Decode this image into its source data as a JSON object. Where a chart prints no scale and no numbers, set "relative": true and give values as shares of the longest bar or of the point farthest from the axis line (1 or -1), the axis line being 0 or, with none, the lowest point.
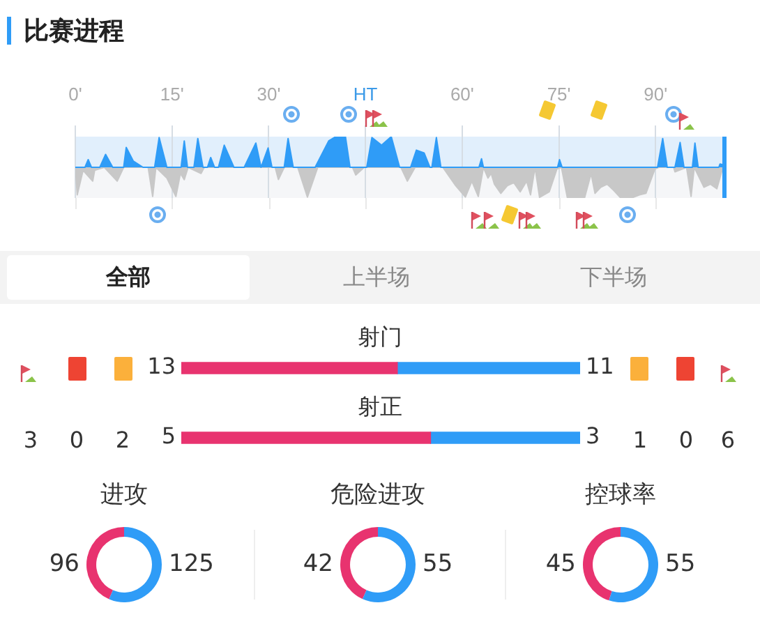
{
  "chart_data": [
    {
      "type": "area",
      "title": "比赛进程",
      "relative": true,
      "xlim": [
        0,
        101
      ],
      "xticks": [
        {
          "value": 0,
          "label": "0'"
        },
        {
          "value": 15,
          "label": "15'"
        },
        {
          "value": 30,
          "label": "30'"
        },
        {
          "value": 45,
          "label": "HT"
        },
        {
          "value": 60,
          "label": "60'"
        },
        {
          "value": 75,
          "label": "75'"
        },
        {
          "value": 90,
          "label": "90'"
        }
      ],
      "grid": "x",
      "tick_labels": "x",
      "ref_lines": [
        {
          "axis": "x",
          "value": 101,
          "color": "#2f9cf7"
        }
      ],
      "series": [
        {
          "color": "#2f9cf7",
          "x": [
            0,
            1.5,
            2,
            2.5,
            3.8,
            4.7,
            5.8,
            7.5,
            7.9,
            9,
            10.5,
            12.3,
            13,
            14.2,
            16.4,
            16.9,
            17.4,
            18.4,
            19,
            19.8,
            20.5,
            21,
            21.6,
            22.2,
            23.1,
            24.6,
            26.2,
            28,
            28.8,
            29.9,
            30.5,
            32.4,
            33,
            33.8,
            37.2,
            39.3,
            40.4,
            41.9,
            42.6,
            45.2,
            46,
            47.5,
            49,
            50.3,
            52,
            52.9,
            54.1,
            55,
            55.3,
            56,
            56.7,
            62.6,
            63,
            63.3,
            74.8,
            75.1,
            75.5,
            90.3,
            91.1,
            91.8,
            93,
            93.8,
            94.4,
            95.7,
            96.1,
            96.6,
            99.8,
            100,
            101
          ],
          "values": [
            0,
            0,
            0.25,
            0,
            0,
            0.42,
            0,
            0,
            0.65,
            0.2,
            0,
            0,
            0.97,
            0,
            0,
            0.86,
            0,
            0,
            0.94,
            0,
            0,
            0.32,
            0,
            0,
            0.72,
            0,
            0,
            0.79,
            0,
            0.63,
            0,
            0,
            0.94,
            0,
            0,
            0.86,
            1,
            1,
            0,
            0,
            0.97,
            0.72,
            1,
            0,
            0,
            0.56,
            0.47,
            0,
            0,
            0.97,
            0,
            0,
            0.28,
            0,
            0,
            0.25,
            0,
            0,
            0.94,
            0,
            0,
            0.81,
            0,
            0,
            0.79,
            0,
            0,
            0.11,
            0.05
          ]
        },
        {
          "color": "#c8c8c8",
          "x": [
            0,
            0.3,
            1.2,
            2.7,
            3,
            4.5,
            6.5,
            7.5,
            11.3,
            12,
            12.5,
            14.2,
            15.6,
            16.3,
            16.9,
            17.5,
            19.5,
            20,
            31,
            31.5,
            32.4,
            34.5,
            36,
            37.6,
            43,
            43.5,
            44.8,
            50.5,
            51.5,
            52.7,
            57,
            59,
            60.5,
            61.5,
            62.5,
            63.3,
            64,
            64.5,
            65,
            66,
            67,
            68,
            69,
            70,
            70.6,
            71.3,
            72,
            73.5,
            74.7,
            75.4,
            76.3,
            79,
            80,
            80.6,
            81.5,
            82.5,
            83.5,
            84.5,
            86.5,
            87.5,
            88.5,
            89.9,
            90.5,
            92.8,
            93,
            94.8,
            95.5,
            96,
            97.5,
            98.5,
            99.5,
            100.3,
            101
          ],
          "values": [
            0,
            -0.9,
            -0.1,
            -0.45,
            -0.1,
            0,
            -0.45,
            0,
            0,
            -0.95,
            0,
            -0.35,
            -0.95,
            -0.2,
            -0.4,
            0,
            -0.2,
            0,
            0,
            -0.4,
            0,
            0,
            -0.97,
            0,
            0,
            -0.25,
            0,
            0,
            -0.45,
            0,
            0,
            -0.6,
            -0.97,
            -0.45,
            -0.95,
            0,
            -0.35,
            -0.2,
            -0.55,
            -0.85,
            -0.6,
            -0.5,
            -0.8,
            -0.45,
            -0.9,
            0,
            -0.98,
            -0.8,
            -0.05,
            0,
            -0.98,
            -0.98,
            -0.2,
            -0.85,
            -0.65,
            -0.55,
            -0.75,
            -0.98,
            -0.98,
            -0.9,
            -0.85,
            -0.05,
            0,
            0,
            -0.15,
            0,
            -0.95,
            0,
            -0.65,
            -0.55,
            -0.7,
            -0.1,
            0
          ]
        }
      ]
    },
    {
      "type": "other",
      "annotations": [
        "全部",
        "上半场",
        "下半场"
      ]
    },
    {
      "type": "bar",
      "title": "射门",
      "orientation": "horizontal",
      "stacked": true,
      "categories": [
        null
      ],
      "tick_labels": false,
      "data_labels": true,
      "series": [
        {
          "color": "#e8336f",
          "values": [
            13
          ]
        },
        {
          "color": "#2f9cf7",
          "values": [
            11
          ]
        }
      ]
    },
    {
      "type": "bar",
      "title": "射正",
      "orientation": "horizontal",
      "stacked": true,
      "categories": [
        null
      ],
      "tick_labels": false,
      "data_labels": true,
      "series": [
        {
          "color": "#e8336f",
          "values": [
            5
          ]
        },
        {
          "color": "#2f9cf7",
          "values": [
            3
          ]
        }
      ]
    },
    {
      "type": "other",
      "annotations": [
        "3",
        "0",
        "2",
        "1",
        "0",
        "6"
      ]
    },
    {
      "type": "donut",
      "title": "进攻",
      "categories": [
        null,
        null
      ],
      "values": [
        96,
        125
      ],
      "colors": [
        "#e8336f",
        "#2f9cf7"
      ],
      "data_labels": true
    },
    {
      "type": "donut",
      "title": "危险进攻",
      "categories": [
        null,
        null
      ],
      "values": [
        42,
        55
      ],
      "colors": [
        "#e8336f",
        "#2f9cf7"
      ],
      "data_labels": true
    },
    {
      "type": "donut",
      "title": "控球率",
      "categories": [
        null,
        null
      ],
      "values": [
        45,
        55
      ],
      "colors": [
        "#e8336f",
        "#2f9cf7"
      ],
      "data_labels": true
    }
  ]
}
